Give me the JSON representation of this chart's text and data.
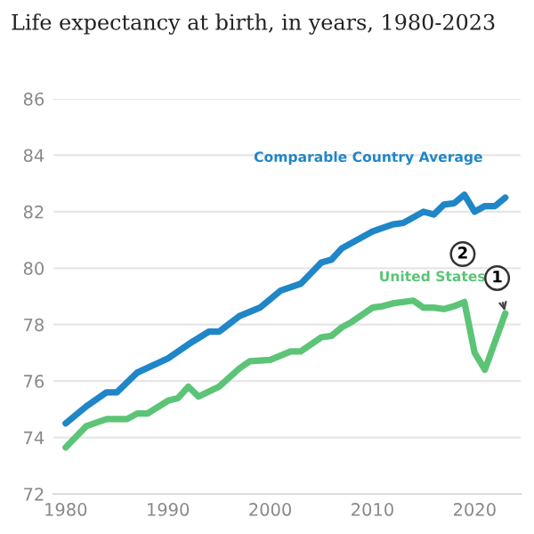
{
  "chart_data": {
    "type": "line",
    "title": "Life expectancy at birth, in years, 1980-2023",
    "series": [
      {
        "name": "Comparable Country Average",
        "color": "#1f86c8",
        "x": [
          1980,
          1982,
          1984,
          1985,
          1987,
          1990,
          1992,
          1994,
          1995,
          1997,
          1999,
          2001,
          2003,
          2005,
          2006,
          2007,
          2010,
          2012,
          2013,
          2015,
          2016,
          2017,
          2018,
          2019,
          2020,
          2021,
          2022,
          2023
        ],
        "values": [
          74.5,
          75.1,
          75.6,
          75.6,
          76.3,
          76.8,
          77.3,
          77.75,
          77.75,
          78.3,
          78.6,
          79.2,
          79.45,
          80.2,
          80.3,
          80.7,
          81.3,
          81.55,
          81.6,
          82.0,
          81.9,
          82.25,
          82.3,
          82.6,
          82.0,
          82.2,
          82.2,
          82.5
        ]
      },
      {
        "name": "United States",
        "color": "#5cc477",
        "x": [
          1980,
          1982,
          1984,
          1986,
          1987,
          1988,
          1990,
          1991,
          1992,
          1993,
          1995,
          1997,
          1998,
          2000,
          2002,
          2003,
          2005,
          2006,
          2007,
          2008,
          2010,
          2011,
          2012,
          2014,
          2015,
          2016,
          2017,
          2018,
          2019,
          2020,
          2021,
          2022,
          2023
        ],
        "values": [
          73.65,
          74.4,
          74.65,
          74.65,
          74.85,
          74.85,
          75.3,
          75.4,
          75.8,
          75.45,
          75.8,
          76.45,
          76.7,
          76.75,
          77.05,
          77.05,
          77.55,
          77.6,
          77.9,
          78.1,
          78.6,
          78.65,
          78.75,
          78.85,
          78.6,
          78.6,
          78.55,
          78.65,
          78.8,
          77.0,
          76.4,
          77.4,
          78.4
        ]
      }
    ],
    "annotations": [
      {
        "text": "1",
        "x": 2023,
        "y": 78.4
      },
      "2"
    ],
    "xlim": [
      1978.8,
      2024.5
    ],
    "ylim": [
      72,
      86
    ],
    "xticks": [
      1980,
      1990,
      2000,
      2010,
      2020
    ],
    "yticks": [
      72,
      74,
      76,
      78,
      80,
      82,
      84,
      86
    ],
    "grid": "y",
    "legend": false,
    "marker": "none",
    "line_style": "solid"
  }
}
